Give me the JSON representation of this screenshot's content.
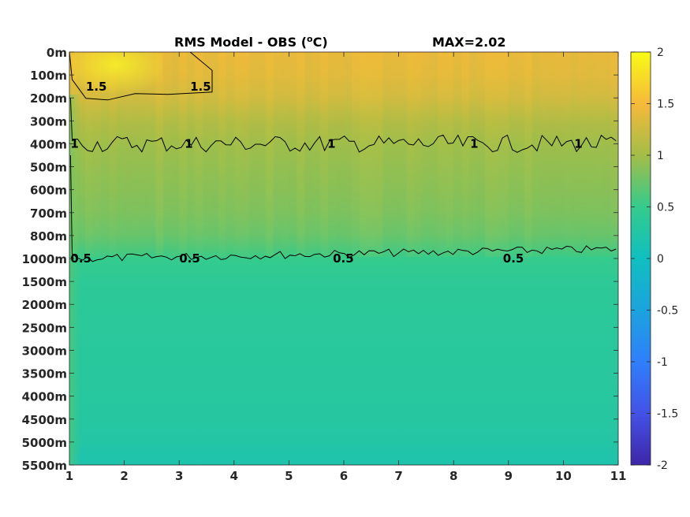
{
  "chart_data": {
    "type": "heatmap",
    "title": "RMS Model - OBS (",
    "title_unit": "o",
    "title_unit_suffix": "C)",
    "max_label": "MAX=2.02",
    "x_ticks": [
      "1",
      "2",
      "3",
      "4",
      "5",
      "6",
      "7",
      "8",
      "9",
      "10",
      "11"
    ],
    "xlim": [
      1,
      11
    ],
    "y_ticks": [
      "0m",
      "100m",
      "200m",
      "300m",
      "400m",
      "500m",
      "600m",
      "700m",
      "800m",
      "1000m",
      "1500m",
      "2000m",
      "2500m",
      "3000m",
      "3500m",
      "4000m",
      "4500m",
      "5000m",
      "5500m"
    ],
    "colorbar_ticks": [
      "2",
      "1.5",
      "1",
      "0.5",
      "0",
      "-0.5",
      "-1",
      "-1.5",
      "-2"
    ],
    "color_range": [
      -2,
      2
    ],
    "colormap": "parula",
    "contour_levels": [
      0.5,
      1,
      1.5
    ],
    "contour_labels": [
      {
        "text": "1.5",
        "x": 3.2,
        "level": 1.5
      },
      {
        "text": "1.5",
        "x": 1.3,
        "level": 1.5
      },
      {
        "text": "1",
        "x": 1.02,
        "level": 1
      },
      {
        "text": "1",
        "x": 3.1,
        "level": 1
      },
      {
        "text": "1",
        "x": 5.7,
        "level": 1
      },
      {
        "text": "1",
        "x": 8.3,
        "level": 1
      },
      {
        "text": "1",
        "x": 10.2,
        "level": 1
      },
      {
        "text": "0.5",
        "x": 1.02,
        "level": 0.5
      },
      {
        "text": "0.5",
        "x": 3.0,
        "level": 0.5
      },
      {
        "text": "0.5",
        "x": 5.8,
        "level": 0.5
      },
      {
        "text": "0.5",
        "x": 8.9,
        "level": 0.5
      }
    ],
    "depth_profile": [
      {
        "depth": "0m",
        "value": 1.45
      },
      {
        "depth": "100m",
        "value": 1.4
      },
      {
        "depth": "200m",
        "value": 1.3
      },
      {
        "depth": "300m",
        "value": 1.1
      },
      {
        "depth": "400m",
        "value": 0.98
      },
      {
        "depth": "500m",
        "value": 0.93
      },
      {
        "depth": "600m",
        "value": 0.88
      },
      {
        "depth": "700m",
        "value": 0.82
      },
      {
        "depth": "800m",
        "value": 0.72
      },
      {
        "depth": "1000m",
        "value": 0.5
      },
      {
        "depth": "1500m",
        "value": 0.4
      },
      {
        "depth": "2000m",
        "value": 0.38
      },
      {
        "depth": "2500m",
        "value": 0.36
      },
      {
        "depth": "3000m",
        "value": 0.35
      },
      {
        "depth": "3500m",
        "value": 0.34
      },
      {
        "depth": "4000m",
        "value": 0.32
      },
      {
        "depth": "4500m",
        "value": 0.3
      },
      {
        "depth": "5000m",
        "value": 0.26
      },
      {
        "depth": "5500m",
        "value": 0.18
      }
    ],
    "surface_maximum": {
      "x_range": [
        1,
        3.6
      ],
      "depth_range": [
        "0m",
        "200m"
      ],
      "value": 2.02
    }
  }
}
